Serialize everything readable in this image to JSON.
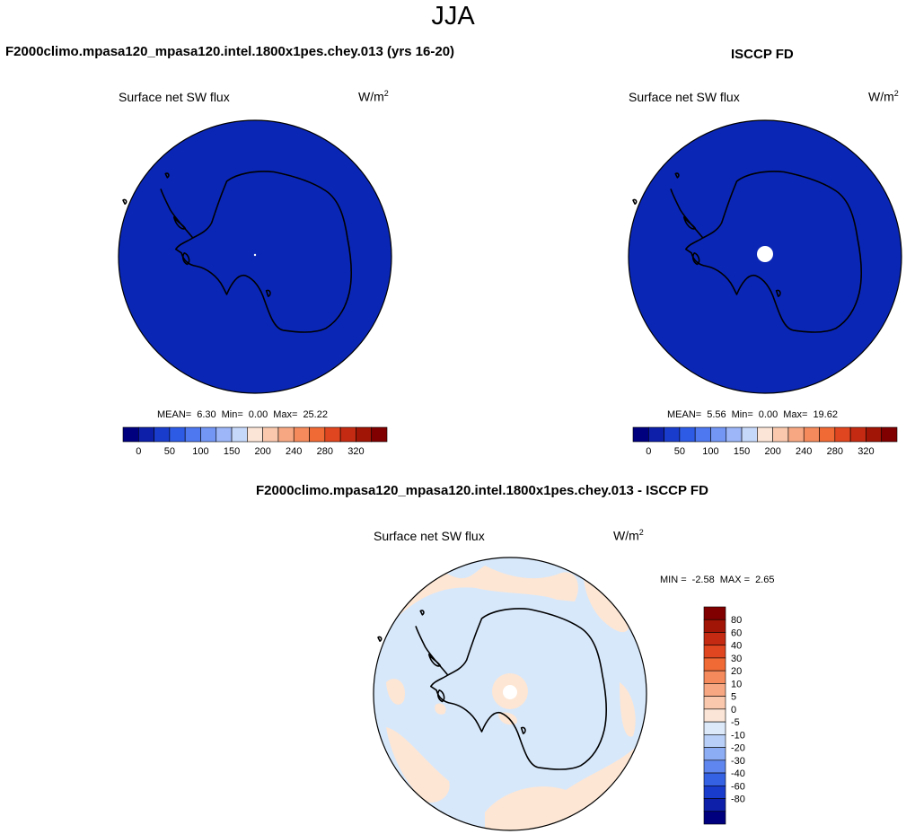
{
  "season": "JJA",
  "panels": [
    {
      "title": "F2000climo.mpasa120_mpasa120.intel.1800x1pes.chey.013 (yrs 16-20)",
      "subtitle": "Surface net SW flux",
      "units": "W/m",
      "units_sup": "2",
      "stats": {
        "mean_label": "MEAN=",
        "mean": "6.30",
        "min_label": "Min=",
        "min": "0.00",
        "max_label": "Max=",
        "max": "25.22"
      }
    },
    {
      "title": "ISCCP FD",
      "subtitle": "Surface net SW flux",
      "units": "W/m",
      "units_sup": "2",
      "stats": {
        "mean_label": "MEAN=",
        "mean": "5.56",
        "min_label": "Min=",
        "min": "0.00",
        "max_label": "Max=",
        "max": "19.62"
      }
    },
    {
      "title": "F2000climo.mpasa120_mpasa120.intel.1800x1pes.chey.013 - ISCCP FD",
      "subtitle": "Surface net SW flux",
      "units": "W/m",
      "units_sup": "2",
      "stats": {
        "min_label": "MIN =",
        "min": "-2.58",
        "max_label": "MAX =",
        "max": "2.65"
      }
    }
  ],
  "chart_data": [
    {
      "type": "heatmap",
      "projection": "south polar stereographic",
      "title": "F2000climo.mpasa120_mpasa120.intel.1800x1pes.chey.013 (yrs 16-20)",
      "field": "Surface net SW flux",
      "units": "W/m2",
      "stats": {
        "mean": 6.3,
        "min": 0.0,
        "max": 25.22
      },
      "dominant_value_range": [
        0,
        25
      ],
      "missing_region": "small point at South Pole",
      "colorbar": {
        "orientation": "horizontal",
        "tick_labels": [
          "0",
          "50",
          "100",
          "150",
          "200",
          "240",
          "280",
          "320"
        ],
        "colors": [
          "#00007f",
          "#0d1fa8",
          "#1a3ccc",
          "#2e5be6",
          "#4d78f0",
          "#7396f5",
          "#9cb6f7",
          "#c6d8fa",
          "#fbe5d6",
          "#f9c8ad",
          "#f7a883",
          "#f58a5c",
          "#f06a36",
          "#e0461f",
          "#c42a12",
          "#a01505",
          "#800000"
        ]
      },
      "continent_outline": "Antarctica"
    },
    {
      "type": "heatmap",
      "projection": "south polar stereographic",
      "title": "ISCCP FD",
      "field": "Surface net SW flux",
      "units": "W/m2",
      "stats": {
        "mean": 5.56,
        "min": 0.0,
        "max": 19.62
      },
      "dominant_value_range": [
        0,
        25
      ],
      "missing_region": "polar cap (white disk)",
      "colorbar": {
        "orientation": "horizontal",
        "tick_labels": [
          "0",
          "50",
          "100",
          "150",
          "200",
          "240",
          "280",
          "320"
        ],
        "colors": [
          "#00007f",
          "#0d1fa8",
          "#1a3ccc",
          "#2e5be6",
          "#4d78f0",
          "#7396f5",
          "#9cb6f7",
          "#c6d8fa",
          "#fbe5d6",
          "#f9c8ad",
          "#f7a883",
          "#f58a5c",
          "#f06a36",
          "#e0461f",
          "#c42a12",
          "#a01505",
          "#800000"
        ]
      },
      "continent_outline": "Antarctica"
    },
    {
      "type": "heatmap",
      "projection": "south polar stereographic",
      "title": "F2000climo.mpasa120_mpasa120.intel.1800x1pes.chey.013 - ISCCP FD",
      "field": "Surface net SW flux",
      "units": "W/m2",
      "stats": {
        "min": -2.58,
        "max": 2.65
      },
      "dominant_value_range": [
        -5,
        0
      ],
      "secondary_value_range": [
        0,
        5
      ],
      "missing_region": "polar cap (white disk)",
      "colorbar": {
        "orientation": "vertical",
        "tick_labels": [
          "80",
          "60",
          "40",
          "30",
          "20",
          "10",
          "5",
          "0",
          "-5",
          "-10",
          "-20",
          "-30",
          "-40",
          "-60",
          "-80"
        ],
        "colors": [
          "#800000",
          "#a01505",
          "#c42a12",
          "#e0461f",
          "#f06a36",
          "#f58a5c",
          "#f7a883",
          "#f9c8ad",
          "#fbe5d6",
          "#dbe9f9",
          "#b8d0f7",
          "#8cacf4",
          "#5f86ee",
          "#3562e3",
          "#1a3ccc",
          "#0d1fa8",
          "#00007f"
        ]
      },
      "continent_outline": "Antarctica"
    }
  ],
  "colors": {
    "dominant_fill_abs": "#0a26b5",
    "diff_negative_fill": "#d7e8fb",
    "diff_positive_fill": "#fde6d4",
    "continent_line": "#000000"
  }
}
